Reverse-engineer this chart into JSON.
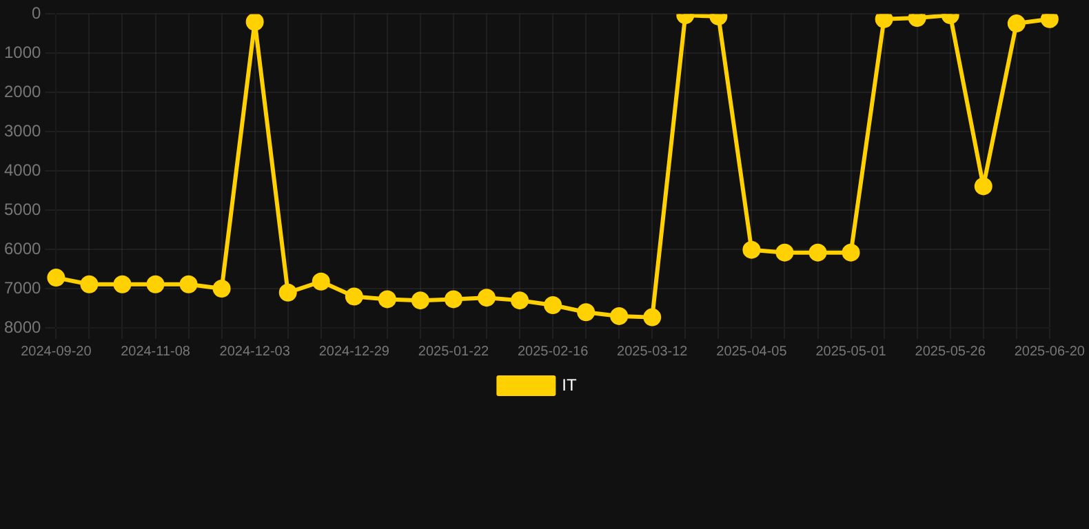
{
  "chart_data": {
    "type": "line",
    "categories": [
      "2024-09-20",
      null,
      null,
      "2024-11-08",
      null,
      null,
      "2024-12-03",
      null,
      null,
      "2024-12-29",
      null,
      null,
      "2025-01-22",
      null,
      null,
      "2025-02-16",
      null,
      null,
      "2025-03-12",
      null,
      null,
      "2025-04-05",
      null,
      null,
      "2025-05-01",
      null,
      null,
      "2025-05-26",
      null,
      null,
      "2025-06-20"
    ],
    "series": [
      {
        "name": "IT",
        "color": "#ffd100",
        "values": [
          6720,
          6890,
          6890,
          6890,
          6890,
          7000,
          200,
          7100,
          6820,
          7200,
          7270,
          7300,
          7270,
          7230,
          7300,
          7420,
          7600,
          7700,
          7730,
          30,
          60,
          6010,
          6080,
          6080,
          6080,
          130,
          100,
          30,
          4390,
          240,
          130
        ]
      }
    ],
    "ylim": [
      8000,
      0
    ],
    "yticks": [
      0,
      1000,
      2000,
      3000,
      4000,
      5000,
      6000,
      7000,
      8000
    ],
    "grid": true,
    "legend": "bottom",
    "marker": "circle",
    "line_style": "solid"
  }
}
